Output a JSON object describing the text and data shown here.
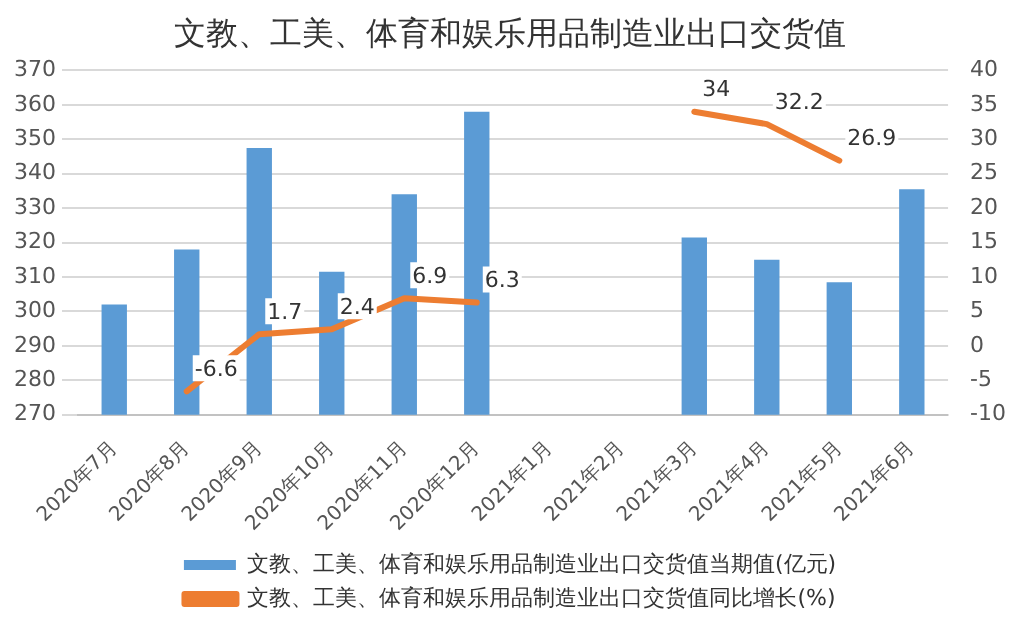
{
  "chart_data": {
    "type": "bar",
    "title": "文教、工美、体育和娱乐用品制造业出口交货值",
    "categories": [
      "2020年7月",
      "2020年8月",
      "2020年9月",
      "2020年10月",
      "2020年11月",
      "2020年12月",
      "2021年1月",
      "2021年2月",
      "2021年3月",
      "2021年4月",
      "2021年5月",
      "2021年6月"
    ],
    "series": [
      {
        "name": "文教、工美、体育和娱乐用品制造业出口交货值当期值(亿元)",
        "color": "#5b9bd5",
        "values": [
          302,
          318,
          347.5,
          311.5,
          334,
          358,
          null,
          null,
          321.5,
          315,
          308.5,
          335.5
        ]
      },
      {
        "name": "文教、工美、体育和娱乐用品制造业出口交货值同比增长(%)",
        "type": "line",
        "axis": "y2",
        "color": "#ed7d31",
        "values": [
          null,
          -6.6,
          1.7,
          2.4,
          6.9,
          6.3,
          null,
          null,
          34,
          32.2,
          26.9,
          null
        ],
        "value_labels": [
          null,
          "-6.6",
          "1.7",
          "2.4",
          "6.9",
          "6.3",
          null,
          null,
          "34",
          "32.2",
          "26.9",
          null
        ]
      }
    ],
    "ylim": [
      270,
      370
    ],
    "yticks": [
      270,
      280,
      290,
      300,
      310,
      320,
      330,
      340,
      350,
      360,
      370
    ],
    "y2lim": [
      -10,
      40
    ],
    "y2ticks": [
      -10,
      -5,
      0,
      5,
      10,
      15,
      20,
      25,
      30,
      35,
      40
    ],
    "grid": "y",
    "legend": "bottom",
    "marker": "none"
  }
}
